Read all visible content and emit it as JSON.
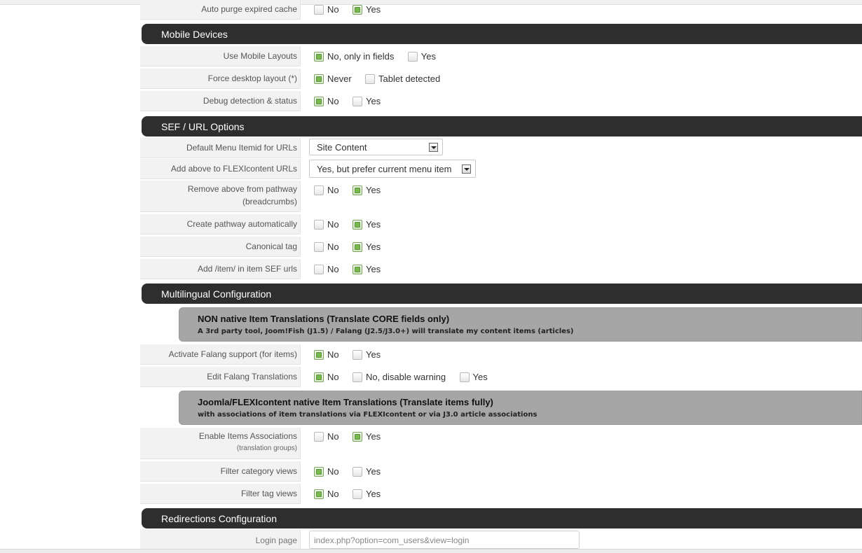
{
  "rows": {
    "auto_purge": {
      "label": "Auto purge expired cache",
      "opt1": "No",
      "opt2": "Yes"
    },
    "use_mobile": {
      "label": "Use Mobile Layouts",
      "opt1": "No, only in fields",
      "opt2": "Yes"
    },
    "force_desktop": {
      "label": "Force desktop layout (*)",
      "opt1": "Never",
      "opt2": "Tablet detected"
    },
    "debug_detect": {
      "label": "Debug detection & status",
      "opt1": "No",
      "opt2": "Yes"
    },
    "default_itemid": {
      "label": "Default Menu Itemid for URLs",
      "value": "Site Content"
    },
    "add_above": {
      "label": "Add above to FLEXIcontent URLs",
      "value": "Yes, but prefer current menu item"
    },
    "remove_above": {
      "label": "Remove above from pathway",
      "label2": "(breadcrumbs)",
      "opt1": "No",
      "opt2": "Yes"
    },
    "create_pathway": {
      "label": "Create pathway automatically",
      "opt1": "No",
      "opt2": "Yes"
    },
    "canonical": {
      "label": "Canonical tag",
      "opt1": "No",
      "opt2": "Yes"
    },
    "add_item_sef": {
      "label": "Add /item/ in item SEF urls",
      "opt1": "No",
      "opt2": "Yes"
    },
    "activate_falang": {
      "label": "Activate Falang support (for items)",
      "opt1": "No",
      "opt2": "Yes"
    },
    "edit_falang": {
      "label": "Edit Falang Translations",
      "opt1": "No",
      "opt2": "No, disable warning",
      "opt3": "Yes"
    },
    "enable_assoc": {
      "label": "Enable Items Associations",
      "label2": "(translation groups)",
      "opt1": "No",
      "opt2": "Yes"
    },
    "filter_cat": {
      "label": "Filter category views",
      "opt1": "No",
      "opt2": "Yes"
    },
    "filter_tag": {
      "label": "Filter tag views",
      "opt1": "No",
      "opt2": "Yes"
    },
    "login_page": {
      "label": "Login page",
      "value": "index.php?option=com_users&view=login"
    }
  },
  "sections": {
    "mobile": "Mobile Devices",
    "sef": "SEF / URL Options",
    "multilingual": "Multilingual Configuration",
    "redirections": "Redirections Configuration"
  },
  "infoboxes": {
    "non_native": {
      "title": "NON native Item Translations (Translate CORE fields only)",
      "desc": "A 3rd party tool, Joom!Fish (J1.5) / Falang (J2.5/J3.0+) will translate my content items (articles)"
    },
    "native": {
      "title": "Joomla/FLEXIcontent native Item Translations (Translate items fully)",
      "desc": "with associations of item translations via FLEXIcontent or via J3.0 article associations"
    }
  },
  "colors": {
    "section_bg": "#2e2e2e",
    "checked": "#78b94f",
    "infobox_bg": "#a6a6a6",
    "label_bg": "#f2f2f2"
  }
}
